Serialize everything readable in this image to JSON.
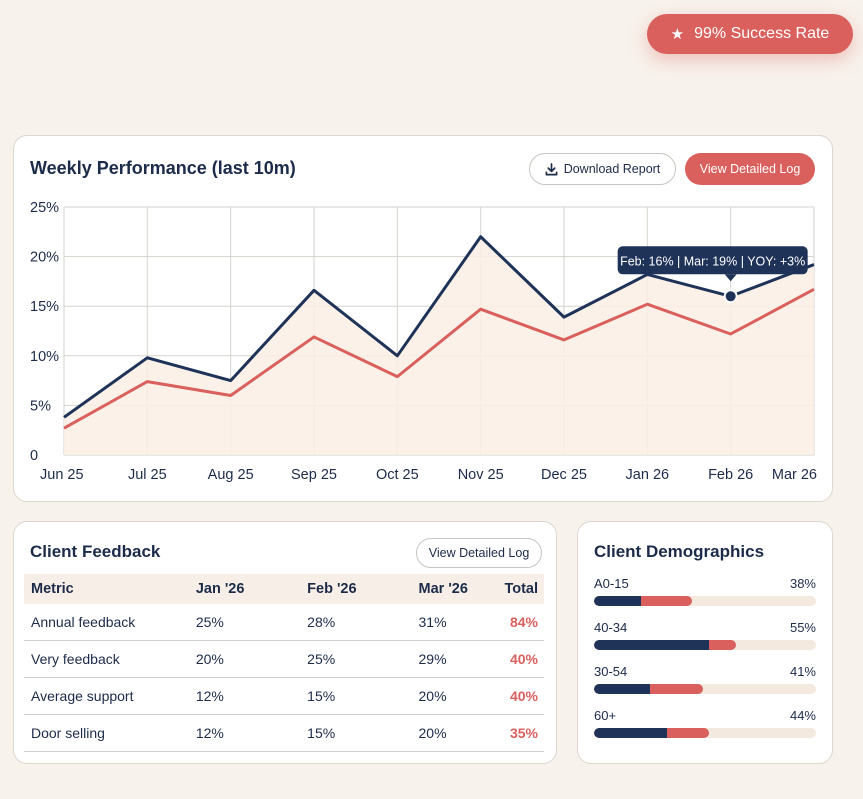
{
  "badge": {
    "icon": "star-icon",
    "label": "99% Success Rate"
  },
  "performance": {
    "title": "Weekly Performance (last 10m)",
    "download_label": "Download Report",
    "detail_label": "View Detailed Log",
    "tooltip": "Feb: 16% | Mar: 19% | YOY: +3%"
  },
  "chart_data": {
    "type": "line",
    "x": [
      "Jun 25",
      "Jul 25",
      "Aug 25",
      "Sep 25",
      "Oct 25",
      "Nov 25",
      "Dec 25",
      "Jan 26",
      "Feb 26",
      "Mar 26"
    ],
    "series": [
      {
        "values": [
          3.8,
          9.8,
          7.5,
          16.6,
          10.0,
          22.0,
          13.9,
          18.2,
          16.0,
          19.2
        ],
        "color": "#1f3358"
      },
      {
        "values": [
          2.7,
          7.4,
          6.0,
          11.9,
          7.9,
          14.7,
          11.6,
          15.2,
          12.2,
          16.7
        ],
        "color": "#d9605c",
        "fill": "#fbeee4"
      }
    ],
    "yticks": [
      "0",
      "5%",
      "10%",
      "15%",
      "20%",
      "25%"
    ],
    "ylim": [
      0,
      25
    ],
    "grid": true,
    "highlight_index": 8
  },
  "feedback": {
    "title": "Client Feedback",
    "detail_label": "View Detailed Log",
    "columns": [
      "Metric",
      "Jan '26",
      "Feb '26",
      "Mar '26",
      "Total"
    ],
    "rows": [
      [
        "Annual feedback",
        "25%",
        "28%",
        "31%",
        "84%"
      ],
      [
        "Very feedback",
        "20%",
        "25%",
        "29%",
        "40%"
      ],
      [
        "Average support",
        "12%",
        "15%",
        "20%",
        "40%"
      ],
      [
        "Door selling",
        "12%",
        "15%",
        "20%",
        "35%"
      ]
    ]
  },
  "demographics": {
    "title": "Client Demographics",
    "items": [
      {
        "label": "A0-15",
        "pct": "38%",
        "value": 0.44,
        "navy": 0.21
      },
      {
        "label": "40-34",
        "pct": "55%",
        "value": 0.64,
        "navy": 0.52
      },
      {
        "label": "30-54",
        "pct": "41%",
        "value": 0.49,
        "navy": 0.25
      },
      {
        "label": "60+",
        "pct": "44%",
        "value": 0.52,
        "navy": 0.33
      }
    ]
  }
}
